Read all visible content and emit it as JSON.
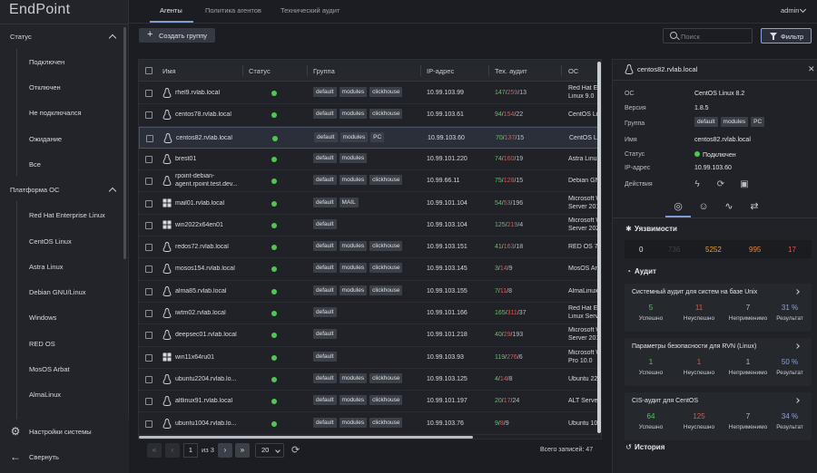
{
  "app": {
    "logo": "EndPoint"
  },
  "header": {
    "tabs": [
      {
        "label": "Агенты",
        "active": true
      },
      {
        "label": "Политика агентов",
        "active": false
      },
      {
        "label": "Технический аудит",
        "active": false
      }
    ],
    "user": "admin"
  },
  "toolbar": {
    "create_label": "Создать группу",
    "search_placeholder": "Поиск",
    "filter_label": "Фильтр"
  },
  "sidebar": {
    "status_title": "Статус",
    "status_items": [
      "Подключен",
      "Отключен",
      "Не подключался",
      "Ожидание",
      "Все"
    ],
    "os_title": "Платформа ОС",
    "os_items": [
      "Red Hat Enterprise Linux",
      "CentOS Linux",
      "Astra Linux",
      "Debian GNU/Linux",
      "Windows",
      "RED OS",
      "MosOS Arbat",
      "AlmaLinux"
    ],
    "settings_label": "Настройки системы",
    "collapse_label": "Свернуть"
  },
  "table": {
    "columns": [
      "Имя",
      "Статус",
      "Группа",
      "IP-адрес",
      "Тех. аудит",
      "ОС"
    ],
    "rows": [
      {
        "os": "linux",
        "name": [
          "rhel9.rvlab.local"
        ],
        "groups": [
          "default",
          "modules",
          "clickhouse"
        ],
        "ip": "10.99.103.99",
        "audit": [
          "147",
          "259",
          "13"
        ],
        "osname": [
          "Red Hat Er",
          "Linux 9.0"
        ],
        "selected": false
      },
      {
        "os": "linux",
        "name": [
          "centos78.rvlab.local"
        ],
        "groups": [
          "default",
          "modules",
          "clickhouse"
        ],
        "ip": "10.99.103.61",
        "audit": [
          "94",
          "154",
          "22"
        ],
        "osname": [
          "CentOS Lin"
        ],
        "selected": false
      },
      {
        "os": "linux",
        "name": [
          "centos82.rvlab.local"
        ],
        "groups": [
          "default",
          "modules",
          "PC"
        ],
        "ip": "10.99.103.60",
        "audit": [
          "70",
          "137",
          "15"
        ],
        "osname": [
          "CentOS Lin"
        ],
        "selected": true
      },
      {
        "os": "linux",
        "name": [
          "brest01"
        ],
        "groups": [
          "default",
          "modules"
        ],
        "ip": "10.99.101.220",
        "audit": [
          "74",
          "160",
          "19"
        ],
        "osname": [
          "Astra Linux"
        ],
        "selected": false
      },
      {
        "os": "linux",
        "name": [
          "rpoint-debian-",
          "agent.rpoint.test.dev..."
        ],
        "groups": [
          "default",
          "modules",
          "clickhouse"
        ],
        "ip": "10.99.66.11",
        "audit": [
          "75",
          "128",
          "15"
        ],
        "osname": [
          "Debian GN"
        ],
        "selected": false
      },
      {
        "os": "windows",
        "name": [
          "mail01.rvlab.local"
        ],
        "groups": [
          "default",
          "MAIL"
        ],
        "ip": "10.99.101.104",
        "audit": [
          "54",
          "53",
          "196"
        ],
        "osname": [
          "Microsoft W",
          "Server 201"
        ],
        "selected": false
      },
      {
        "os": "windows",
        "name": [
          "win2022x64en01"
        ],
        "groups": [
          "default"
        ],
        "ip": "10.99.103.104",
        "audit": [
          "125",
          "219",
          "4"
        ],
        "osname": [
          "Microsoft W",
          "Server 202"
        ],
        "selected": false
      },
      {
        "os": "linux",
        "name": [
          "redos72.rvlab.local"
        ],
        "groups": [
          "default",
          "modules",
          "clickhouse"
        ],
        "ip": "10.99.103.151",
        "audit": [
          "41",
          "163",
          "18"
        ],
        "osname": [
          "RED OS 7.2"
        ],
        "selected": false
      },
      {
        "os": "linux",
        "name": [
          "mosos154.rvlab.local"
        ],
        "groups": [
          "default",
          "modules",
          "clickhouse"
        ],
        "ip": "10.99.103.145",
        "audit": [
          "3",
          "14",
          "9"
        ],
        "osname": [
          "MosOS Arb"
        ],
        "selected": false
      },
      {
        "os": "linux",
        "name": [
          "alma85.rvlab.local"
        ],
        "groups": [
          "default",
          "modules",
          "clickhouse"
        ],
        "ip": "10.99.103.155",
        "audit": [
          "7",
          "11",
          "8"
        ],
        "osname": [
          "AlmaLinux"
        ],
        "selected": false
      },
      {
        "os": "linux",
        "name": [
          "iwtm02.rvlab.local"
        ],
        "groups": [
          "default"
        ],
        "ip": "10.99.101.166",
        "audit": [
          "165",
          "311",
          "37"
        ],
        "osname": [
          "Red Hat Er",
          "Linux Serv"
        ],
        "selected": false
      },
      {
        "os": "linux",
        "name": [
          "deepsec01.rvlab.local"
        ],
        "groups": [
          "default"
        ],
        "ip": "10.99.101.218",
        "audit": [
          "40",
          "29",
          "193"
        ],
        "osname": [
          "Microsoft W",
          "Server 201"
        ],
        "selected": false
      },
      {
        "os": "windows",
        "name": [
          "win11x64ru01"
        ],
        "groups": [
          "default"
        ],
        "ip": "10.99.103.93",
        "audit": [
          "119",
          "276",
          "6"
        ],
        "osname": [
          "Microsoft W",
          "Pro 10.0"
        ],
        "selected": false
      },
      {
        "os": "linux",
        "name": [
          "ubuntu2204.rvlab.lo..."
        ],
        "groups": [
          "default",
          "modules",
          "clickhouse"
        ],
        "ip": "10.99.103.125",
        "audit": [
          "4",
          "14",
          "8"
        ],
        "osname": [
          "Ubuntu 22."
        ],
        "selected": false
      },
      {
        "os": "linux",
        "name": [
          "altlinux91.rvlab.local"
        ],
        "groups": [
          "default",
          "modules",
          "clickhouse"
        ],
        "ip": "10.99.101.197",
        "audit": [
          "20",
          "17",
          "24"
        ],
        "osname": [
          "ALT Server"
        ],
        "selected": false
      },
      {
        "os": "linux",
        "name": [
          "ubuntu1004.rvlab.lo..."
        ],
        "groups": [
          "default",
          "modules",
          "clickhouse"
        ],
        "ip": "10.99.103.76",
        "audit": [
          "9",
          "8",
          "9"
        ],
        "osname": [
          "Ubuntu 10."
        ],
        "selected": false
      }
    ]
  },
  "pagination": {
    "page": "1",
    "of_label": "из 3",
    "page_size": "20",
    "total": "Всего записей: 47"
  },
  "panel": {
    "title": "centos82.rvlab.local",
    "fields": [
      {
        "k": "ОС",
        "v": "CentOS Linux 8.2"
      },
      {
        "k": "Версия",
        "v": "1.8.5"
      },
      {
        "k": "Группа",
        "v": ""
      },
      {
        "k": "Имя",
        "v": "centos82.rvlab.local"
      },
      {
        "k": "Статус",
        "v": "Подключен"
      },
      {
        "k": "IP-адрес",
        "v": "10.99.103.60"
      },
      {
        "k": "Действия",
        "v": ""
      }
    ],
    "groups": [
      "default",
      "modules",
      "PC"
    ],
    "vuln_title": "Уязвимости",
    "vuln_values": [
      "0",
      "736",
      "5252",
      "995",
      "17"
    ],
    "audit_title": "Аудит",
    "audits": [
      {
        "title": "Системный аудит для систем на базе Unix",
        "values": [
          "5",
          "11",
          "7",
          "31 %"
        ]
      },
      {
        "title": "Параметры безопасности для RVN (Linux)",
        "values": [
          "1",
          "1",
          "1",
          "50 %"
        ]
      },
      {
        "title": "CIS-аудит для CentOS",
        "values": [
          "64",
          "125",
          "7",
          "34 %"
        ]
      }
    ],
    "audit_labels": [
      "Успешно",
      "Неуспешно",
      "Неприменимо",
      "Результат"
    ],
    "history_title": "История"
  },
  "colors": {
    "accent": "#7e9cd8",
    "ok": "#5bc35b",
    "fail": "#e0564f",
    "warn": "#e6a23c",
    "online": "#4fc84f"
  }
}
